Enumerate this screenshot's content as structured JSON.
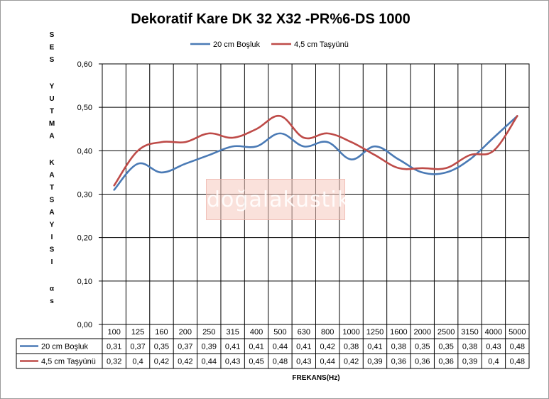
{
  "chart_data": {
    "type": "line",
    "title": "Dekoratif Kare DK 32 X32 -PR%6-DS 1000",
    "ylabel": "SES YUTMA KATSAYISI αs",
    "xlabel": "FREKANS(Hz)",
    "ylim": [
      0,
      0.6
    ],
    "y_ticks": [
      "0,00",
      "0,10",
      "0,20",
      "0,30",
      "0,40",
      "0,50",
      "0,60"
    ],
    "grid": true,
    "legend_position": "top",
    "categories": [
      "100",
      "125",
      "160",
      "200",
      "250",
      "315",
      "400",
      "500",
      "630",
      "800",
      "1000",
      "1250",
      "1600",
      "2000",
      "2500",
      "3150",
      "4000",
      "5000"
    ],
    "series": [
      {
        "name": "20 cm Boşluk",
        "color": "#4a7ab5",
        "values": [
          0.31,
          0.37,
          0.35,
          0.37,
          0.39,
          0.41,
          0.41,
          0.44,
          0.41,
          0.42,
          0.38,
          0.41,
          0.38,
          0.35,
          0.35,
          0.38,
          0.43,
          0.48
        ],
        "labels": [
          "0,31",
          "0,37",
          "0,35",
          "0,37",
          "0,39",
          "0,41",
          "0,41",
          "0,44",
          "0,41",
          "0,42",
          "0,38",
          "0,41",
          "0,38",
          "0,35",
          "0,35",
          "0,38",
          "0,43",
          "0,48"
        ]
      },
      {
        "name": "4,5 cm Taşyünü",
        "color": "#be4b48",
        "values": [
          0.32,
          0.4,
          0.42,
          0.42,
          0.44,
          0.43,
          0.45,
          0.48,
          0.43,
          0.44,
          0.42,
          0.39,
          0.36,
          0.36,
          0.36,
          0.39,
          0.4,
          0.48
        ],
        "labels": [
          "0,32",
          "0,4",
          "0,42",
          "0,42",
          "0,44",
          "0,43",
          "0,45",
          "0,48",
          "0,43",
          "0,44",
          "0,42",
          "0,39",
          "0,36",
          "0,36",
          "0,36",
          "0,39",
          "0,4",
          "0,48"
        ]
      }
    ],
    "watermark": "doğalakustik"
  }
}
